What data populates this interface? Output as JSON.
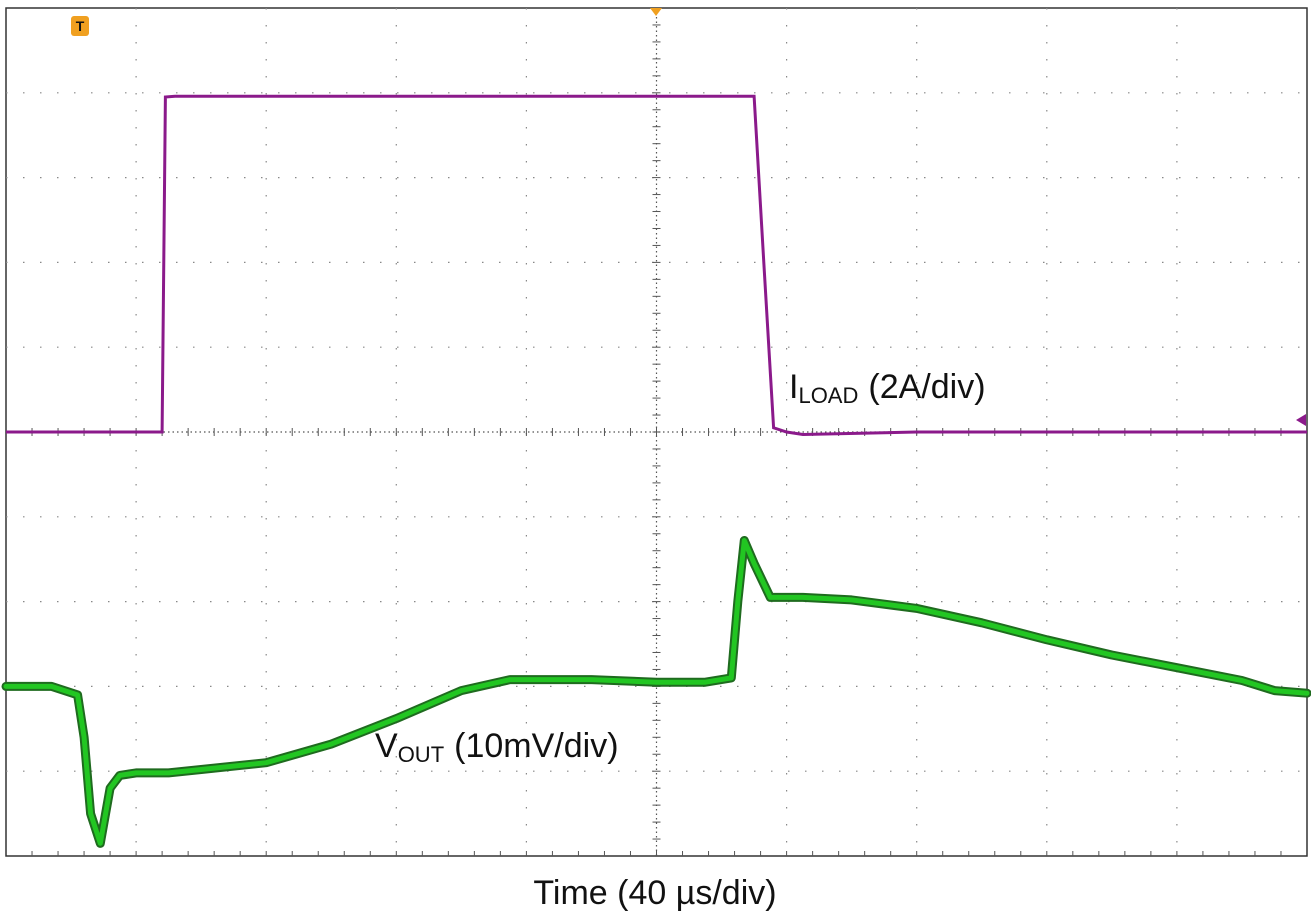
{
  "chart_data": {
    "type": "line",
    "title": "",
    "xlabel": "Time (40 µs/div)",
    "ylabel": "",
    "grid": true,
    "x_divisions": 10,
    "y_divisions": 10,
    "xlim": [
      -200,
      200
    ],
    "xlim_unit": "µs",
    "ylim_div": [
      -5,
      5
    ],
    "trigger_marker": "T",
    "series": [
      {
        "name": "I LOAD",
        "label_main": "I",
        "label_sub": "LOAD",
        "label_scale": "(2A/div)",
        "color": "#8b1a8b",
        "x": [
          -200,
          -152,
          -151,
          -148,
          -140,
          -100,
          -50,
          0,
          30,
          33,
          36,
          40,
          45,
          80,
          120,
          160,
          200
        ],
        "y": [
          0,
          0,
          3.95,
          3.96,
          3.96,
          3.96,
          3.96,
          3.96,
          3.96,
          2.0,
          0.05,
          0.0,
          -0.03,
          0,
          0,
          0,
          0
        ]
      },
      {
        "name": "V OUT",
        "label_main": "V",
        "label_sub": "OUT",
        "label_scale": "(10mV/div)",
        "color": "#22c622",
        "x": [
          -200,
          -186,
          -178,
          -176,
          -174,
          -171,
          -168,
          -165,
          -160,
          -150,
          -140,
          -120,
          -100,
          -80,
          -60,
          -45,
          -40,
          -20,
          0,
          15,
          23,
          25,
          27,
          30,
          35,
          45,
          60,
          80,
          100,
          120,
          140,
          160,
          180,
          190,
          200
        ],
        "y": [
          -3.0,
          -3.0,
          -3.1,
          -3.6,
          -4.5,
          -4.85,
          -4.2,
          -4.05,
          -4.02,
          -4.02,
          -3.98,
          -3.9,
          -3.68,
          -3.38,
          -3.05,
          -2.92,
          -2.92,
          -2.92,
          -2.95,
          -2.95,
          -2.9,
          -2.0,
          -1.28,
          -1.55,
          -1.95,
          -1.95,
          -1.98,
          -2.08,
          -2.25,
          -2.45,
          -2.63,
          -2.78,
          -2.93,
          -3.05,
          -3.08
        ]
      }
    ]
  }
}
